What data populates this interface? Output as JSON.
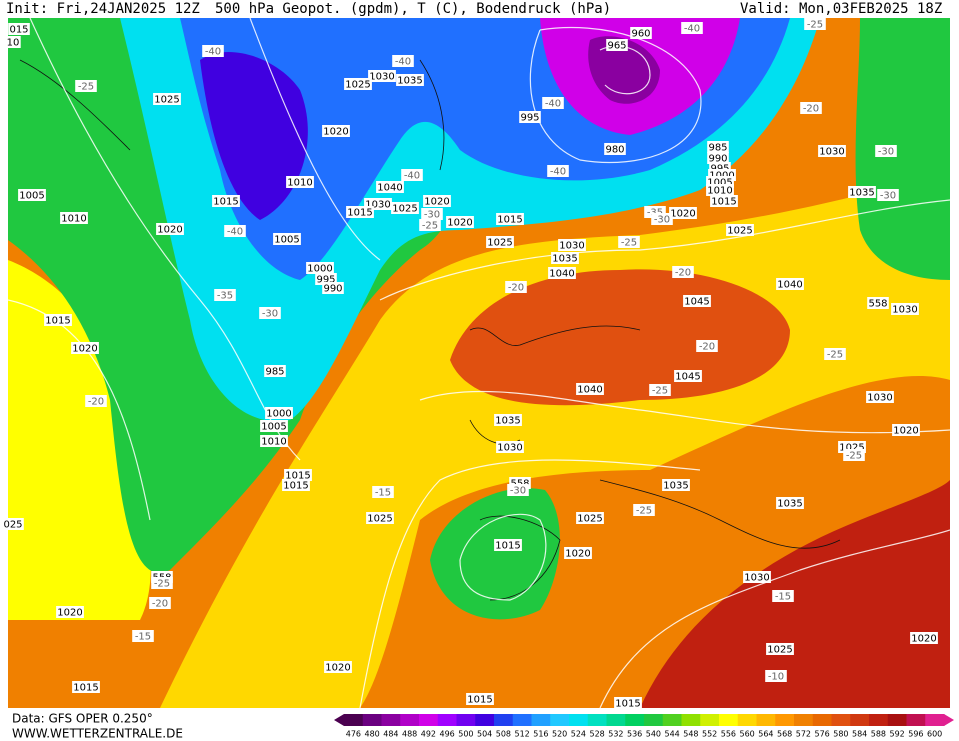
{
  "header": {
    "init": "Init: Fri,24JAN2025 12Z",
    "title": "500 hPa Geopot. (gpdm), T (C), Bodendruck (hPa)",
    "valid": "Valid: Mon,03FEB2025 18Z"
  },
  "footer": {
    "data": "Data: GFS OPER 0.250°",
    "site": "WWW.WETTERZENTRALE.DE"
  },
  "colorbar": {
    "ticks": [
      476,
      480,
      484,
      488,
      492,
      496,
      500,
      504,
      508,
      512,
      516,
      520,
      524,
      528,
      532,
      536,
      540,
      544,
      548,
      552,
      556,
      560,
      564,
      568,
      572,
      576,
      580,
      584,
      588,
      592,
      596,
      600
    ],
    "colors": [
      "#4b0050",
      "#6a0080",
      "#8a00a0",
      "#b000c8",
      "#d000e8",
      "#a000ff",
      "#7000f0",
      "#4000e0",
      "#2040f0",
      "#2070ff",
      "#20a0ff",
      "#20c8ff",
      "#00e0f0",
      "#00e0c0",
      "#00d890",
      "#00d060",
      "#20c840",
      "#50d020",
      "#90e000",
      "#d0f000",
      "#ffff00",
      "#ffd800",
      "#ffb800",
      "#ff9800",
      "#f08000",
      "#e86800",
      "#e05010",
      "#d03810",
      "#c02010",
      "#a81010",
      "#c01050",
      "#e02090"
    ]
  },
  "pressure_labels": [
    "1025",
    "1005",
    "1010",
    "1020",
    "1015",
    "1010",
    "1005",
    "1000",
    "995",
    "990",
    "985",
    "1000",
    "1005",
    "1010",
    "1015",
    "1020",
    "1020",
    "1030",
    "1035",
    "1025",
    "1040",
    "1030",
    "1015",
    "1025",
    "1020",
    "1020",
    "1015",
    "1025",
    "1030",
    "1035",
    "1040",
    "995",
    "980",
    "965",
    "960",
    "985",
    "990",
    "995",
    "1000",
    "1005",
    "1010",
    "1015",
    "1020",
    "1025",
    "1030",
    "1035",
    "1040",
    "1045",
    "1045",
    "1040",
    "1035",
    "1030",
    "1015",
    "1015",
    "1025",
    "1025",
    "1035",
    "1035",
    "1015",
    "1020",
    "1030",
    "1020",
    "1020",
    "1015",
    "1015",
    "1015",
    "1025",
    "1020",
    "1025",
    "1030",
    "1020",
    "1030",
    "558",
    "558",
    "558",
    "015",
    "10",
    "025"
  ],
  "temperature_labels": [
    "-40",
    "-40",
    "-25",
    "-40",
    "-35",
    "-30",
    "-40",
    "-40",
    "-40",
    "-25",
    "-20",
    "-30",
    "-30",
    "-25",
    "-30",
    "-40",
    "-35",
    "-30",
    "-25",
    "-20",
    "-20",
    "-20",
    "-25",
    "-25",
    "-20",
    "-15",
    "-30",
    "-25",
    "-25",
    "-20",
    "-25",
    "-15",
    "-15",
    "-10"
  ]
}
